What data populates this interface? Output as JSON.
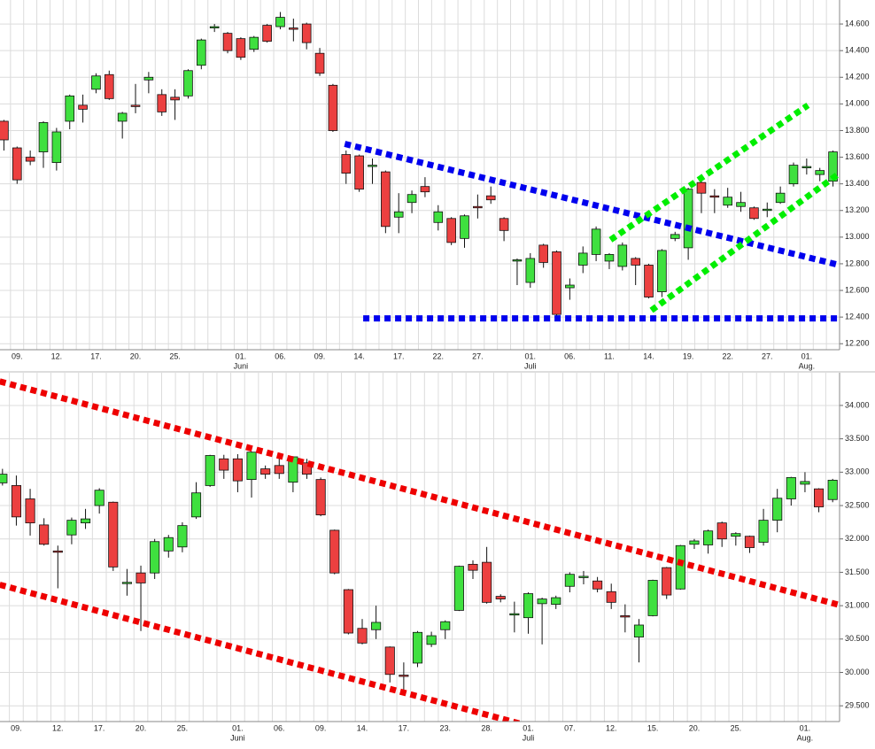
{
  "chart_data": [
    {
      "type": "candlestick",
      "categories": [
        null,
        "09.",
        null,
        null,
        "12.",
        null,
        null,
        "17.",
        null,
        null,
        "20.",
        null,
        null,
        "25.",
        null,
        null,
        null,
        null,
        "01.",
        null,
        null,
        "06.",
        null,
        null,
        "09.",
        null,
        null,
        "14.",
        null,
        null,
        "17.",
        null,
        null,
        "22.",
        null,
        null,
        "27.",
        null,
        null,
        null,
        "01.",
        null,
        null,
        "06.",
        null,
        null,
        "11.",
        null,
        null,
        "14.",
        null,
        null,
        "19.",
        null,
        null,
        "22.",
        null,
        null,
        "27.",
        null,
        null,
        "01.",
        null,
        null
      ],
      "month_labels": [
        null,
        null,
        null,
        null,
        null,
        null,
        null,
        null,
        null,
        null,
        null,
        null,
        null,
        null,
        null,
        null,
        null,
        null,
        "Juni",
        null,
        null,
        null,
        null,
        null,
        null,
        null,
        null,
        null,
        null,
        null,
        null,
        null,
        null,
        null,
        null,
        null,
        null,
        null,
        null,
        null,
        "Juli",
        null,
        null,
        null,
        null,
        null,
        null,
        null,
        null,
        null,
        null,
        null,
        null,
        null,
        null,
        null,
        null,
        null,
        null,
        null,
        null,
        "Aug.",
        null,
        null
      ],
      "open": [
        13870,
        13670,
        13600,
        13640,
        13560,
        13870,
        13990,
        14110,
        14220,
        13870,
        13990,
        14180,
        14070,
        14050,
        14060,
        14290,
        14570,
        14530,
        14490,
        14410,
        14590,
        14580,
        14570,
        14600,
        14380,
        14140,
        13620,
        13610,
        13540,
        13490,
        13150,
        13260,
        13380,
        13110,
        13140,
        12990,
        13230,
        13310,
        13140,
        12830,
        12660,
        12940,
        12890,
        12620,
        12790,
        12870,
        12820,
        12780,
        12840,
        12790,
        12590,
        12990,
        12920,
        13410,
        13310,
        13240,
        13230,
        13220,
        13210,
        13260,
        13400,
        13530,
        13470,
        13420
      ],
      "high": [
        13880,
        13680,
        13650,
        13870,
        13820,
        14070,
        14070,
        14230,
        14250,
        13940,
        14150,
        14240,
        14110,
        14110,
        14260,
        14490,
        14600,
        14540,
        14500,
        14510,
        14600,
        14690,
        14640,
        14610,
        14420,
        14150,
        13650,
        13620,
        13590,
        13500,
        13330,
        13350,
        13450,
        13240,
        13150,
        13170,
        13320,
        13380,
        13150,
        12840,
        12880,
        12950,
        12900,
        12690,
        12930,
        13080,
        12880,
        12960,
        12850,
        12800,
        12910,
        13040,
        13370,
        13420,
        13360,
        13370,
        13340,
        13230,
        13260,
        13380,
        13560,
        13590,
        13520,
        13650
      ],
      "low": [
        13650,
        13400,
        13540,
        13520,
        13500,
        13810,
        13860,
        14080,
        14030,
        13740,
        13930,
        14080,
        13910,
        13880,
        14040,
        14260,
        14540,
        14380,
        14330,
        14390,
        14460,
        14560,
        14470,
        14410,
        14210,
        13790,
        13400,
        13340,
        13400,
        13030,
        13030,
        13180,
        13300,
        13050,
        12940,
        12920,
        13140,
        13250,
        12970,
        12640,
        12620,
        12770,
        12400,
        12530,
        12730,
        12820,
        12760,
        12750,
        12640,
        12540,
        12550,
        12970,
        12830,
        13180,
        13180,
        13220,
        13190,
        13130,
        13150,
        13250,
        13380,
        13470,
        13420,
        13380
      ],
      "close": [
        13730,
        13430,
        13570,
        13860,
        13790,
        14060,
        13960,
        14210,
        14040,
        13930,
        13980,
        14200,
        13940,
        14030,
        14250,
        14480,
        14580,
        14400,
        14350,
        14500,
        14470,
        14650,
        14560,
        14460,
        14230,
        13800,
        13480,
        13360,
        13540,
        13080,
        13190,
        13320,
        13340,
        13190,
        12960,
        13160,
        13220,
        13280,
        13050,
        12830,
        12840,
        12810,
        12420,
        12640,
        12880,
        13060,
        12870,
        12940,
        12790,
        12550,
        12900,
        13020,
        13360,
        13330,
        13300,
        13300,
        13260,
        13140,
        13210,
        13330,
        13540,
        13530,
        13500,
        13640
      ],
      "ylim": [
        12155,
        14780
      ],
      "yticks": [
        {
          "value": 12200,
          "label": "12.200"
        },
        {
          "value": 12400,
          "label": "12.400"
        },
        {
          "value": 12600,
          "label": "12.600"
        },
        {
          "value": 12800,
          "label": "12.800"
        },
        {
          "value": 13000,
          "label": "13.000"
        },
        {
          "value": 13200,
          "label": "13.200"
        },
        {
          "value": 13400,
          "label": "13.400"
        },
        {
          "value": 13600,
          "label": "13.600"
        },
        {
          "value": 13800,
          "label": "13.800"
        },
        {
          "value": 14000,
          "label": "14.000"
        },
        {
          "value": 14200,
          "label": "14.200"
        },
        {
          "value": 14400,
          "label": "14.400"
        },
        {
          "value": 14600,
          "label": "14.600"
        }
      ],
      "grid": true,
      "up_color": "#3fe03f",
      "down_color": "#ec4040",
      "trend_lines": [
        {
          "color": "#0000ee",
          "x": [
            25.9,
            63.5
          ],
          "y": [
            13700,
            12790
          ]
        },
        {
          "color": "#0000ee",
          "x": [
            27.3,
            63.5
          ],
          "y": [
            12390,
            12390
          ]
        },
        {
          "color": "#00ee00",
          "x": [
            46.1,
            61.1
          ],
          "y": [
            12980,
            13990
          ]
        },
        {
          "color": "#00ee00",
          "x": [
            49.2,
            63.5
          ],
          "y": [
            12450,
            13480
          ]
        }
      ]
    },
    {
      "type": "candlestick",
      "categories": [
        null,
        "09.",
        null,
        null,
        "12.",
        null,
        null,
        "17.",
        null,
        null,
        "20.",
        null,
        null,
        "25.",
        null,
        null,
        null,
        "01.",
        null,
        null,
        "06.",
        null,
        null,
        "09.",
        null,
        null,
        "14.",
        null,
        null,
        "17.",
        null,
        null,
        "23.",
        null,
        null,
        "28.",
        null,
        null,
        "01.",
        null,
        null,
        "07.",
        null,
        null,
        "12.",
        null,
        null,
        "15.",
        null,
        null,
        "20.",
        null,
        null,
        "25.",
        null,
        null,
        null,
        null,
        "01.",
        null,
        null
      ],
      "month_labels": [
        null,
        null,
        null,
        null,
        null,
        null,
        null,
        null,
        null,
        null,
        null,
        null,
        null,
        null,
        null,
        null,
        null,
        "Juni",
        null,
        null,
        null,
        null,
        null,
        null,
        null,
        null,
        null,
        null,
        null,
        null,
        null,
        null,
        null,
        null,
        null,
        null,
        null,
        null,
        "Juli",
        null,
        null,
        null,
        null,
        null,
        null,
        null,
        null,
        null,
        null,
        null,
        null,
        null,
        null,
        null,
        null,
        null,
        null,
        null,
        "Aug.",
        null,
        null
      ],
      "open": [
        32840,
        32800,
        32600,
        32210,
        31820,
        32060,
        32240,
        32500,
        32550,
        31350,
        31490,
        31490,
        31820,
        31880,
        32330,
        32800,
        33200,
        33200,
        32890,
        33050,
        33100,
        32850,
        33140,
        32890,
        32130,
        31240,
        30660,
        30640,
        30380,
        29960,
        30140,
        30420,
        30640,
        30930,
        31620,
        31650,
        31140,
        30880,
        30820,
        31030,
        31020,
        31290,
        31420,
        31370,
        31210,
        30850,
        30530,
        30850,
        31570,
        31250,
        31920,
        31910,
        32240,
        32040,
        32040,
        31950,
        32280,
        32600,
        32820,
        32750,
        32590
      ],
      "high": [
        33050,
        32950,
        32750,
        32310,
        31900,
        32320,
        32450,
        32760,
        32560,
        31550,
        31600,
        32000,
        32060,
        32250,
        32850,
        33260,
        33260,
        33270,
        33310,
        33100,
        33200,
        33240,
        33200,
        32920,
        32140,
        31250,
        30800,
        31000,
        30390,
        30150,
        30620,
        30610,
        30780,
        31600,
        31680,
        31880,
        31170,
        31060,
        31200,
        31120,
        31150,
        31500,
        31520,
        31430,
        31330,
        31020,
        30800,
        31390,
        31580,
        31910,
        32000,
        32140,
        32260,
        32100,
        32050,
        32450,
        32750,
        32930,
        33000,
        32760,
        32900
      ],
      "low": [
        32800,
        32200,
        32050,
        31900,
        31260,
        31920,
        32150,
        32380,
        31520,
        31150,
        30620,
        31400,
        31720,
        31800,
        32300,
        32780,
        32900,
        32700,
        32620,
        32900,
        32900,
        32700,
        32900,
        32340,
        31470,
        30570,
        30420,
        30500,
        29850,
        29700,
        30080,
        30380,
        30500,
        30920,
        31400,
        31030,
        31050,
        30600,
        30580,
        30420,
        30950,
        31200,
        31320,
        31200,
        30950,
        30600,
        30150,
        30840,
        31100,
        31240,
        31850,
        31780,
        31880,
        31900,
        31790,
        31900,
        32100,
        32500,
        32700,
        32400,
        32550
      ],
      "close": [
        32970,
        32330,
        32240,
        31920,
        31800,
        32280,
        32300,
        32730,
        31580,
        31350,
        31340,
        31960,
        32020,
        32200,
        32690,
        33250,
        33030,
        32870,
        33300,
        32970,
        32980,
        33230,
        32970,
        32360,
        31490,
        30590,
        30440,
        30750,
        29970,
        29950,
        30600,
        30550,
        30760,
        31590,
        31530,
        31050,
        31100,
        30880,
        31180,
        31100,
        31120,
        31470,
        31440,
        31250,
        31050,
        30840,
        30710,
        31380,
        31160,
        31900,
        31970,
        32120,
        32000,
        32080,
        31870,
        32280,
        32610,
        32920,
        32860,
        32480,
        32880
      ],
      "ylim": [
        29264,
        34490
      ],
      "yticks": [
        {
          "value": 29500,
          "label": "29.500"
        },
        {
          "value": 30000,
          "label": "30.000"
        },
        {
          "value": 30500,
          "label": "30.500"
        },
        {
          "value": 31000,
          "label": "31.000"
        },
        {
          "value": 31500,
          "label": "31.500"
        },
        {
          "value": 32000,
          "label": "32.000"
        },
        {
          "value": 32500,
          "label": "32.500"
        },
        {
          "value": 33000,
          "label": "33.000"
        },
        {
          "value": 33500,
          "label": "33.500"
        },
        {
          "value": 34000,
          "label": "34.000"
        }
      ],
      "grid": true,
      "up_color": "#3fe03f",
      "down_color": "#ec4040",
      "trend_lines": [
        {
          "color": "#ee0000",
          "x": [
            -0.2,
            60.5
          ],
          "y": [
            34360,
            31010
          ]
        },
        {
          "color": "#ee0000",
          "x": [
            -0.2,
            38.0
          ],
          "y": [
            31314,
            29200
          ]
        }
      ]
    }
  ]
}
